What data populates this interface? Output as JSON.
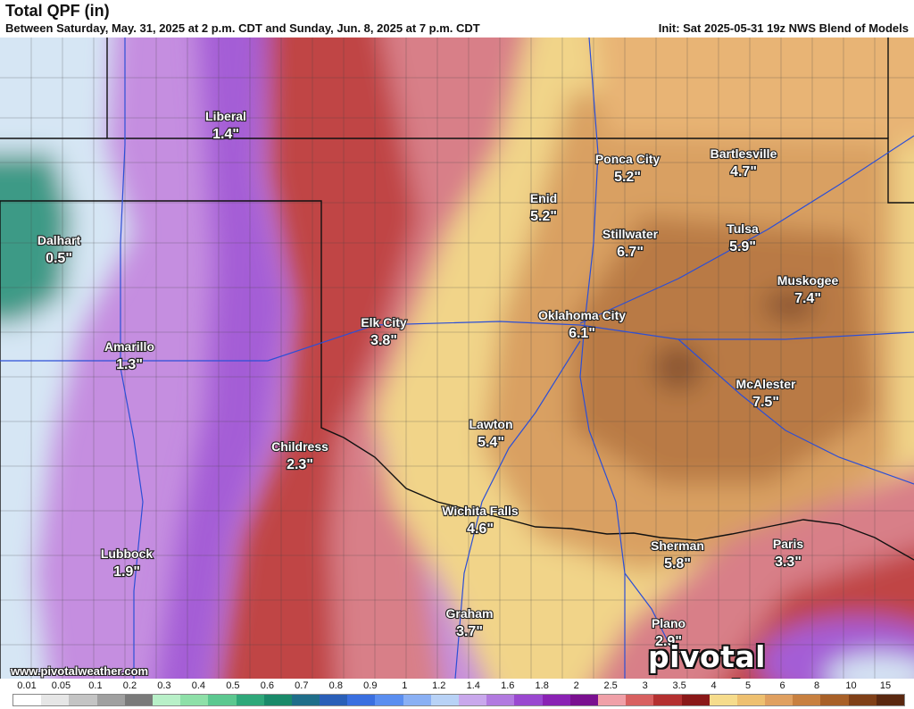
{
  "header": {
    "title": "Total QPF (in)",
    "subtitle": "Between Saturday, May. 31, 2025 at 2 p.m. CDT and Sunday, Jun. 8, 2025 at 7 p.m. CDT",
    "init": "Init: Sat 2025-05-31 19z NWS Blend of Models"
  },
  "cities": [
    {
      "name": "Liberal",
      "value": "1.4\""
    },
    {
      "name": "Ponca City",
      "value": "5.2\""
    },
    {
      "name": "Bartlesville",
      "value": "4.7\""
    },
    {
      "name": "Enid",
      "value": "5.2\""
    },
    {
      "name": "Dalhart",
      "value": "0.5\""
    },
    {
      "name": "Stillwater",
      "value": "6.7\""
    },
    {
      "name": "Tulsa",
      "value": "5.9\""
    },
    {
      "name": "Muskogee",
      "value": "7.4\""
    },
    {
      "name": "Elk City",
      "value": "3.8\""
    },
    {
      "name": "Oklahoma City",
      "value": "6.1\""
    },
    {
      "name": "Amarillo",
      "value": "1.3\""
    },
    {
      "name": "McAlester",
      "value": "7.5\""
    },
    {
      "name": "Lawton",
      "value": "5.4\""
    },
    {
      "name": "Childress",
      "value": "2.3\""
    },
    {
      "name": "Wichita Falls",
      "value": "4.6\""
    },
    {
      "name": "Sherman",
      "value": "5.8\""
    },
    {
      "name": "Paris",
      "value": "3.3\""
    },
    {
      "name": "Lubbock",
      "value": "1.9\""
    },
    {
      "name": "Graham",
      "value": "3.7\""
    },
    {
      "name": "Plano",
      "value": "2.9\""
    }
  ],
  "footer": {
    "site": "www.pivotalweather.com",
    "brand": "pivotal weather"
  },
  "legend": {
    "labels": [
      "0.01",
      "0.05",
      "0.1",
      "0.2",
      "0.3",
      "0.4",
      "0.5",
      "0.6",
      "0.7",
      "0.8",
      "0.9",
      "1",
      "1.2",
      "1.4",
      "1.6",
      "1.8",
      "2",
      "2.5",
      "3",
      "3.5",
      "4",
      "5",
      "6",
      "8",
      "10",
      "15"
    ],
    "colors": [
      "#ffffff",
      "#e6e6e6",
      "#c4c4c4",
      "#a0a0a0",
      "#7a7a7a",
      "#b8f0c8",
      "#8ee0a8",
      "#5cc890",
      "#2fa87a",
      "#1a8a6a",
      "#1f6e8a",
      "#2a5fb8",
      "#3a6fe0",
      "#5a8ef0",
      "#8ab0f4",
      "#b8d2f6",
      "#c9a8ec",
      "#b27ae0",
      "#9a48d0",
      "#8a22b4",
      "#7a1090",
      "#f0a0a8",
      "#d86060",
      "#b43030",
      "#8a1818",
      "#f6dc8c",
      "#eec070",
      "#e0a060",
      "#c88040",
      "#a86028",
      "#804018",
      "#5a2810"
    ]
  },
  "colors": {
    "outer_purple": "#c58ee0",
    "deep_purple": "#a45dd6",
    "teal": "#3c9a86",
    "blue_white": "#d6e6f4",
    "red": "#c04444",
    "pink": "#d87f88",
    "tan": "#f1d489",
    "orange": "#d9a062",
    "brown": "#b97a44",
    "dark_brown": "#8a5530"
  }
}
